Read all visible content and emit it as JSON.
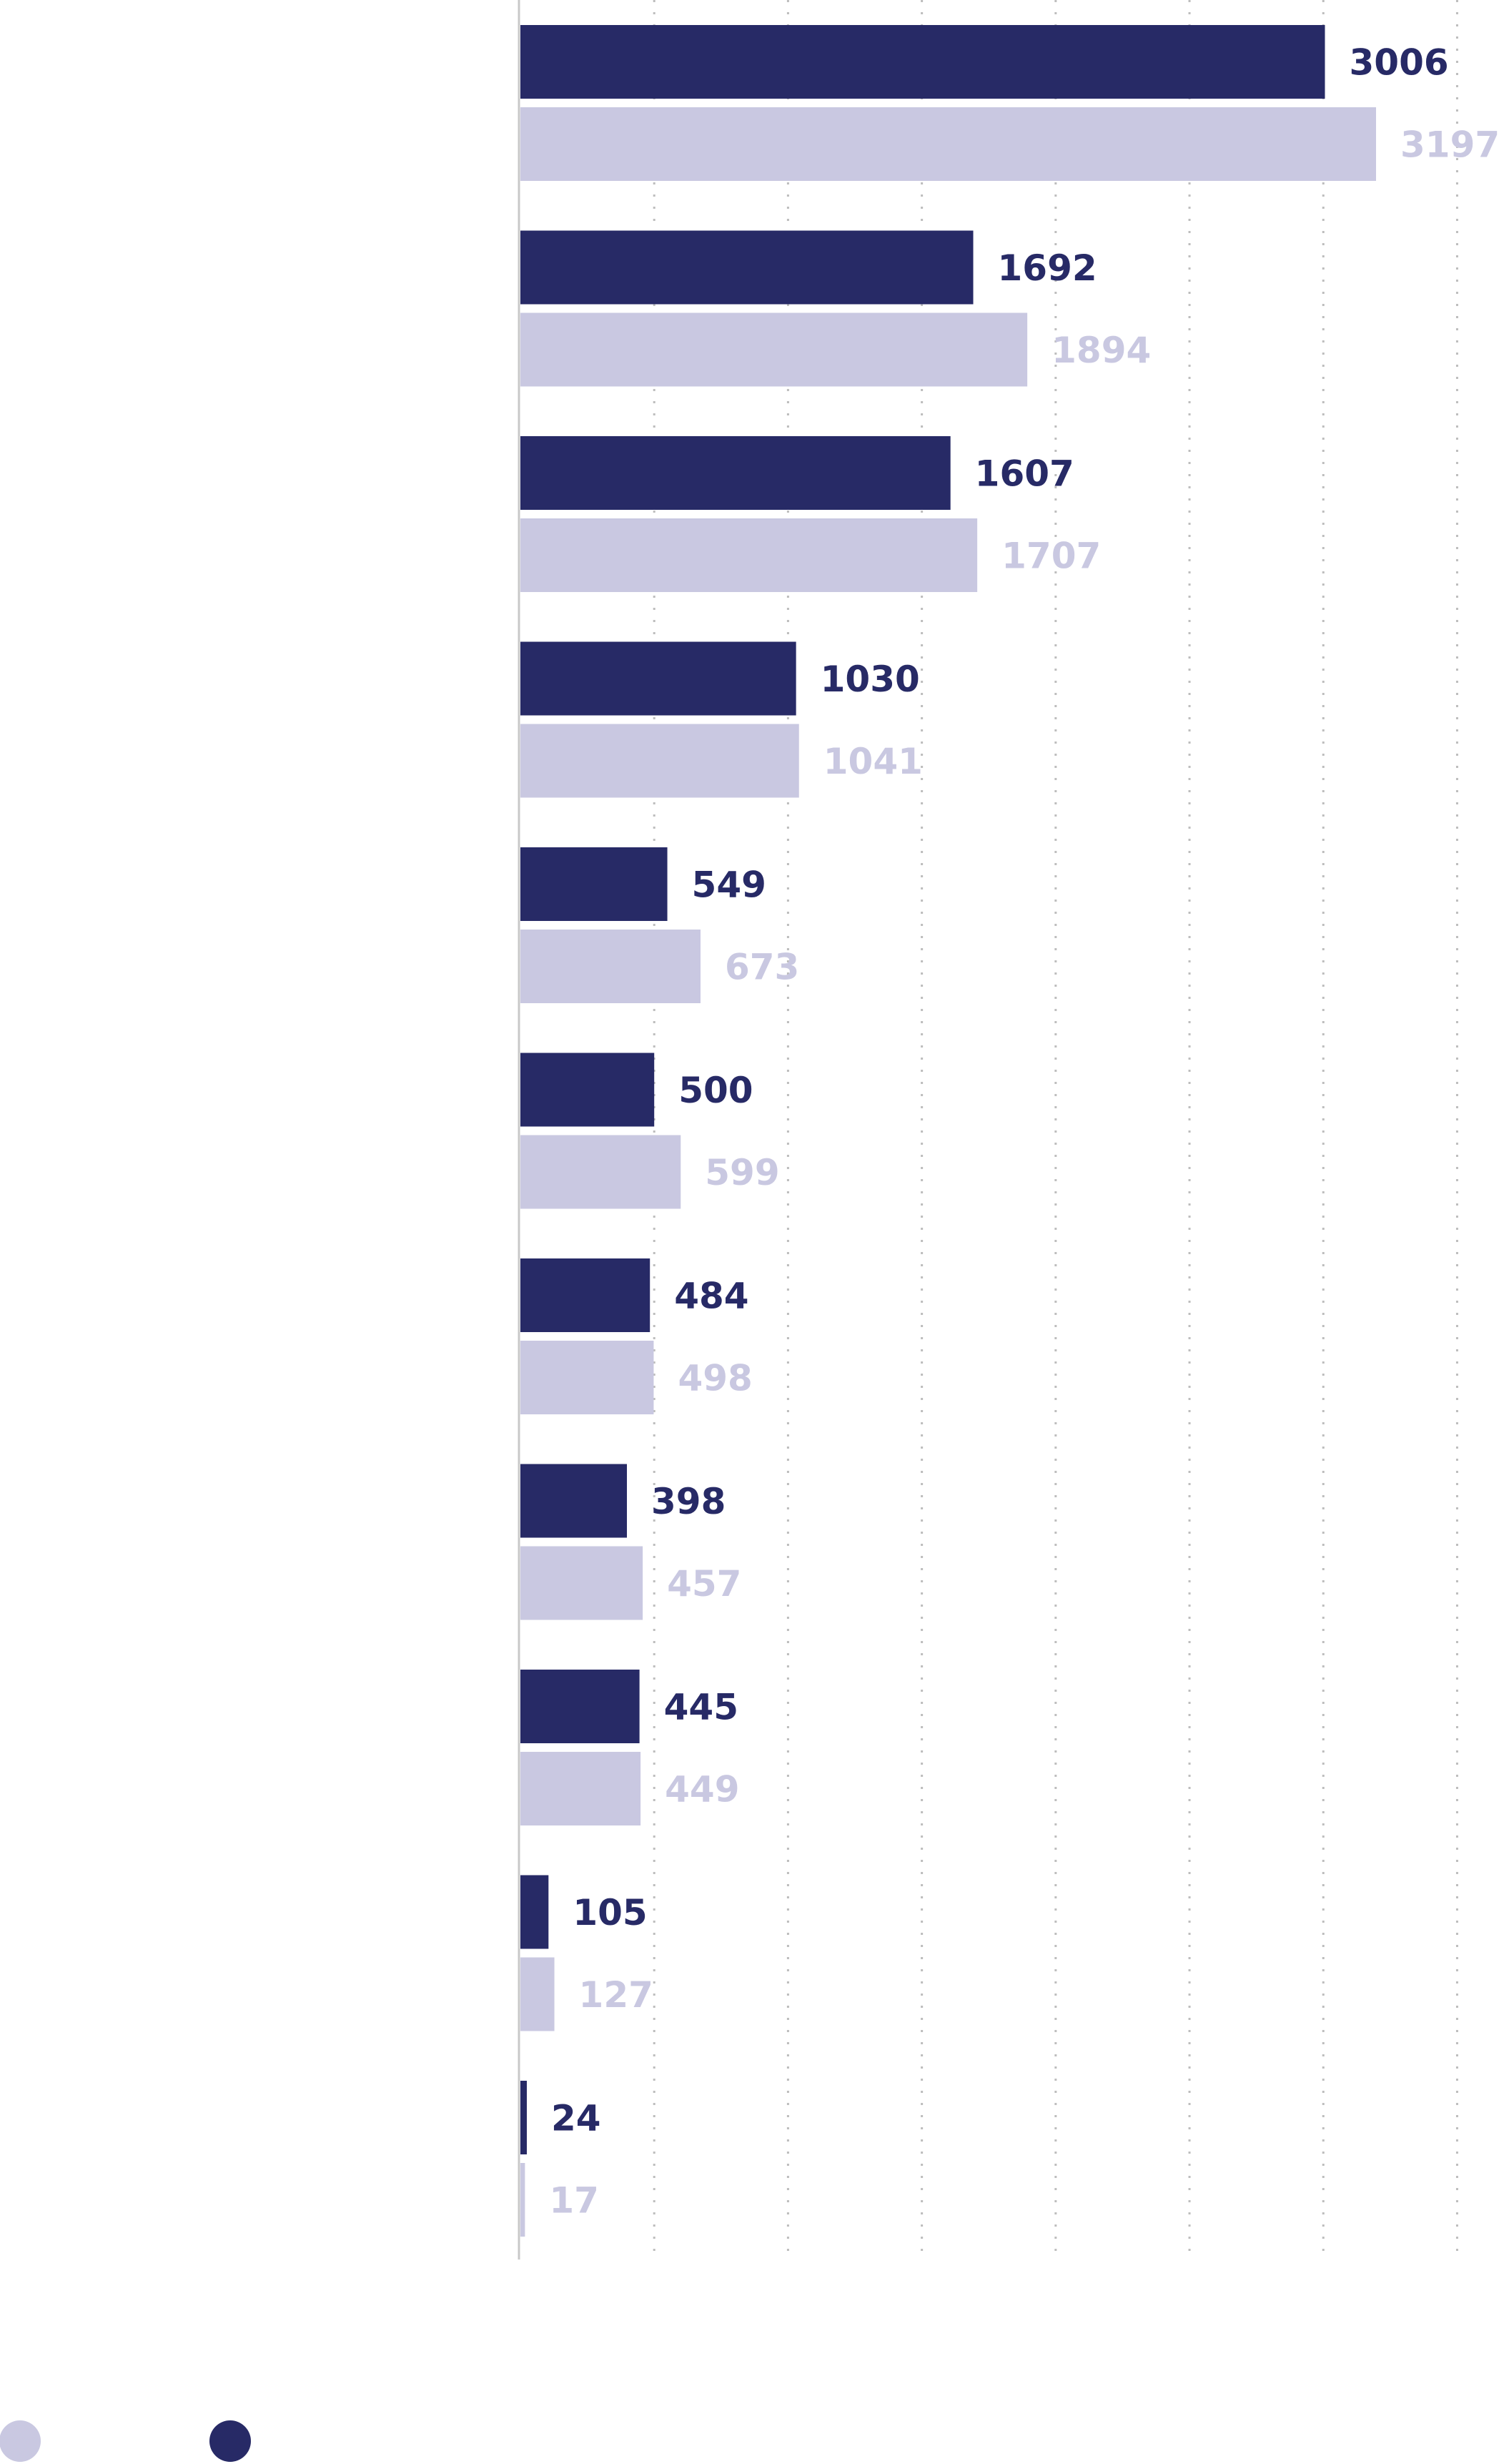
{
  "chart_data": {
    "type": "bar",
    "orientation": "horizontal",
    "categories": [
      "",
      "",
      "",
      "",
      "",
      "",
      "",
      "",
      "",
      "",
      ""
    ],
    "series": [
      {
        "color": "#272a66",
        "values": [
          3006,
          1692,
          1607,
          1030,
          549,
          500,
          484,
          398,
          445,
          105,
          24
        ]
      },
      {
        "color": "#c9c8e1",
        "values": [
          3197,
          1894,
          1707,
          1041,
          673,
          599,
          498,
          457,
          449,
          127,
          17
        ]
      }
    ],
    "xlim": [
      0,
      3500
    ],
    "grid": true,
    "grid_step": 500,
    "legend_position": "bottom-left",
    "legend_order": [
      1,
      0
    ]
  }
}
